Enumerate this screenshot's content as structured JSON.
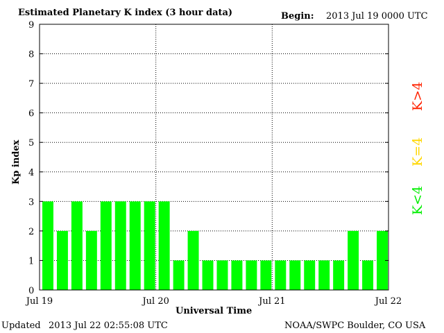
{
  "chart_data": {
    "type": "bar",
    "title": "Estimated Planetary K index (3 hour data)",
    "begin_label": "Begin:",
    "begin_value": "2013 Jul 19 0000 UTC",
    "xlabel": "Universal Time",
    "ylabel": "Kp index",
    "ylim": [
      0,
      9
    ],
    "yticks": [
      "0",
      "1",
      "2",
      "3",
      "4",
      "5",
      "6",
      "7",
      "8",
      "9"
    ],
    "xticks": [
      "Jul 19",
      "Jul 20",
      "Jul 21",
      "Jul 22"
    ],
    "values": [
      3,
      2,
      3,
      2,
      3,
      3,
      3,
      3,
      3,
      1,
      2,
      1,
      1,
      1,
      1,
      1,
      1,
      1,
      1,
      1,
      1,
      2,
      1,
      2
    ],
    "bar_color": "#00ff00",
    "grid": "dotted",
    "legend": [
      {
        "label": "K<4",
        "color": "#00ee00"
      },
      {
        "label": "K=4",
        "color": "#ffd700"
      },
      {
        "label": "K>4",
        "color": "#ff2200"
      }
    ]
  },
  "footer": {
    "updated_label": "Updated",
    "updated_value": "2013 Jul 22 02:55:08 UTC",
    "source": "NOAA/SWPC Boulder, CO USA"
  }
}
